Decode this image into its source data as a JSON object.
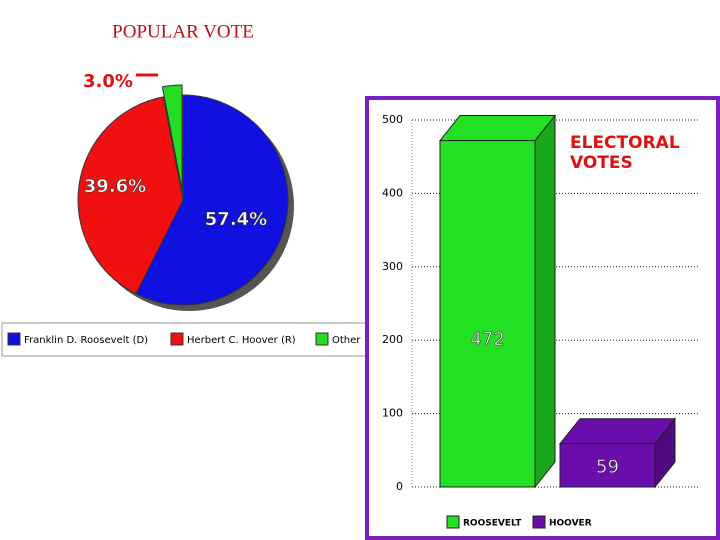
{
  "chart_data": [
    {
      "type": "pie",
      "title": "POPULAR VOTE",
      "categories": [
        "Franklin D. Roosevelt (D)",
        "Herbert C. Hoover (R)",
        "Other"
      ],
      "values": [
        57.4,
        39.6,
        3.0
      ],
      "value_labels": [
        "57.4%",
        "39.6%",
        "3.0%"
      ],
      "colors": [
        "#1010e0",
        "#f01010",
        "#22dd22"
      ]
    },
    {
      "type": "bar",
      "title": "ELECTORAL VOTES",
      "categories": [
        "ROOSEVELT",
        "HOOVER"
      ],
      "values": [
        472,
        59
      ],
      "colors": [
        "#22e022",
        "#6a0dad"
      ],
      "ylim": [
        0,
        500
      ],
      "yticks": [
        0,
        100,
        200,
        300,
        400,
        500
      ],
      "grid": true
    }
  ]
}
